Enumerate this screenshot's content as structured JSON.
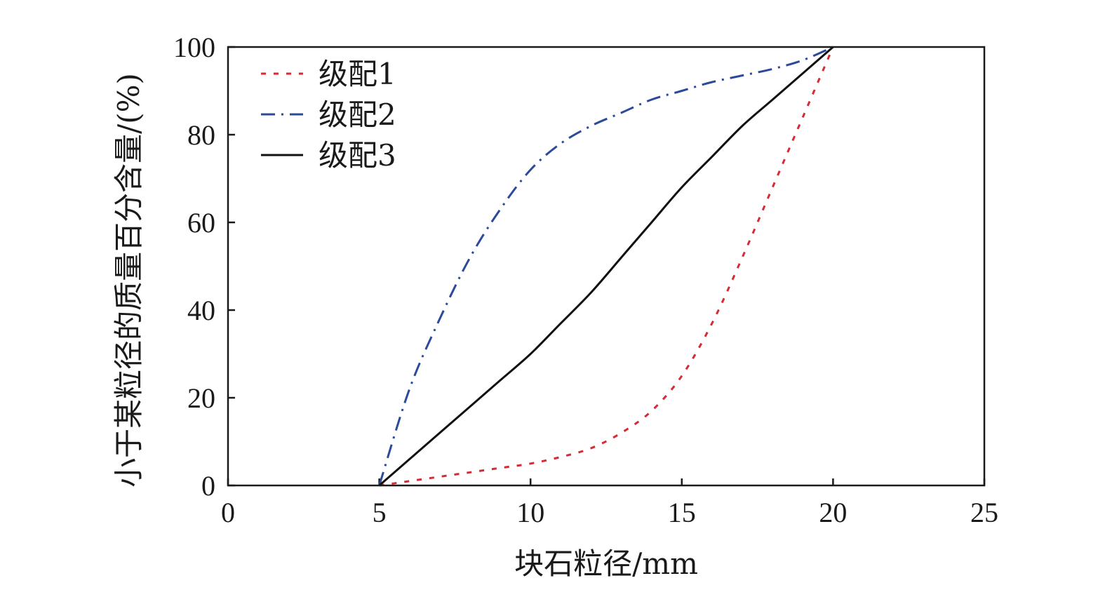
{
  "chart_data": {
    "type": "line",
    "title": "",
    "xlabel": "块石粒径/mm",
    "ylabel": "小于某粒径的质量百分含量/(%)",
    "xlim": [
      0,
      25
    ],
    "ylim": [
      0,
      100
    ],
    "xticks": [
      "0",
      "5",
      "10",
      "15",
      "20",
      "25"
    ],
    "yticks": [
      "0",
      "20",
      "40",
      "60",
      "80",
      "100"
    ],
    "grid": false,
    "legend_position": "top-left",
    "series": [
      {
        "name": "级配1",
        "color": "#d62a36",
        "style": "dashed",
        "x": [
          5,
          6,
          7,
          8,
          9,
          10,
          11,
          12,
          13,
          14,
          15,
          16,
          17,
          18,
          19,
          20
        ],
        "y": [
          0,
          1,
          2,
          3,
          4,
          5,
          6.5,
          8.5,
          12,
          17,
          25,
          37,
          52,
          68,
          84,
          100
        ]
      },
      {
        "name": "级配2",
        "color": "#2c4a9a",
        "style": "dashdot",
        "x": [
          5,
          6,
          7,
          8,
          9,
          10,
          11,
          12,
          13,
          14,
          15,
          16,
          17,
          18,
          19,
          20
        ],
        "y": [
          0,
          22,
          38,
          52,
          63,
          72,
          78,
          82,
          85,
          88,
          90,
          92,
          93.5,
          95,
          97,
          100
        ]
      },
      {
        "name": "级配3",
        "color": "#111111",
        "style": "solid",
        "x": [
          5,
          6,
          7,
          8,
          9,
          10,
          11,
          12,
          13,
          14,
          15,
          16,
          17,
          18,
          19,
          20
        ],
        "y": [
          0,
          6,
          12,
          18,
          24,
          30,
          37,
          44,
          52,
          60,
          68,
          75,
          82,
          88,
          94,
          100
        ]
      }
    ]
  }
}
